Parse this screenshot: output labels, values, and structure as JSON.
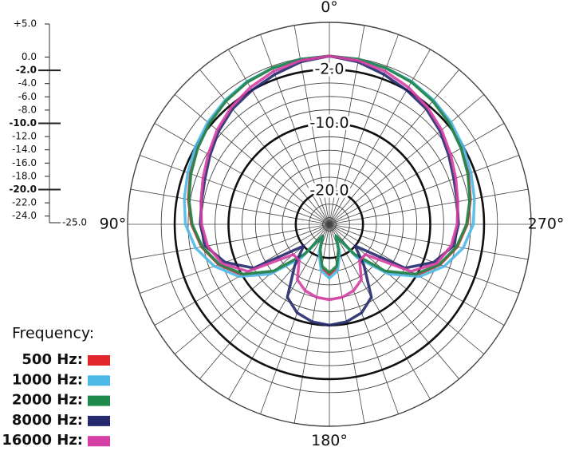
{
  "chart_data": {
    "type": "polar",
    "theta": [
      0,
      10,
      20,
      30,
      40,
      50,
      60,
      70,
      80,
      90,
      100,
      110,
      120,
      130,
      140,
      150,
      160,
      170,
      180,
      190,
      200,
      210,
      220,
      230,
      240,
      250,
      260,
      270,
      280,
      290,
      300,
      310,
      320,
      330,
      340,
      350
    ],
    "rlim": [
      -25,
      5
    ],
    "rticks": [
      {
        "value": 5,
        "label": "+5.0"
      },
      {
        "value": 0,
        "label": "0.0"
      },
      {
        "value": -2,
        "label": "-2.0",
        "major": true
      },
      {
        "value": -4,
        "label": "-4.0"
      },
      {
        "value": -6,
        "label": "-6.0"
      },
      {
        "value": -8,
        "label": "-8.0"
      },
      {
        "value": -10,
        "label": "-10.0",
        "major": true
      },
      {
        "value": -12,
        "label": "-12.0"
      },
      {
        "value": -14,
        "label": "-14.0"
      },
      {
        "value": -16,
        "label": "-16.0"
      },
      {
        "value": -18,
        "label": "-18.0"
      },
      {
        "value": -20,
        "label": "-20.0",
        "major": true
      },
      {
        "value": -22,
        "label": "-22.0"
      },
      {
        "value": -24,
        "label": "-24.0"
      },
      {
        "value": -25,
        "label": "-25.0"
      }
    ],
    "angle_labels": [
      {
        "value": 0,
        "label": "0°"
      },
      {
        "value": 90,
        "label": "90°"
      },
      {
        "value": 180,
        "label": "180°"
      },
      {
        "value": 270,
        "label": "270°"
      }
    ],
    "legend_title": "Frequency:",
    "series": [
      {
        "name": "500 Hz:",
        "color": "#e0262b",
        "values": [
          0,
          -0.1,
          -0.3,
          -0.6,
          -1.0,
          -1.6,
          -2.3,
          -3.0,
          -3.7,
          -4.5,
          -5.7,
          -7.5,
          -10,
          -14,
          -19,
          -23,
          -21,
          -18.5,
          -17.5,
          -18.5,
          -21,
          -23,
          -19,
          -14,
          -10,
          -7.5,
          -5.7,
          -4.5,
          -3.7,
          -3.0,
          -2.3,
          -1.6,
          -1.0,
          -0.6,
          -0.3,
          -0.1
        ]
      },
      {
        "name": "1000 Hz:",
        "color": "#4cb8e6",
        "values": [
          0,
          -0.1,
          -0.3,
          -0.5,
          -0.9,
          -1.4,
          -2.0,
          -2.6,
          -3.1,
          -3.6,
          -4.8,
          -6.8,
          -9.5,
          -13.5,
          -18.5,
          -23,
          -20.5,
          -18,
          -17,
          -18,
          -20.5,
          -23,
          -18.5,
          -13.5,
          -9.5,
          -6.8,
          -4.8,
          -3.6,
          -3.1,
          -2.6,
          -2.0,
          -1.4,
          -0.9,
          -0.5,
          -0.3,
          -0.1
        ]
      },
      {
        "name": "2000 Hz:",
        "color": "#1e8a4c",
        "values": [
          0,
          -0.1,
          -0.3,
          -0.6,
          -1.1,
          -1.7,
          -2.4,
          -3.1,
          -3.8,
          -4.6,
          -5.8,
          -7.6,
          -10.2,
          -14.2,
          -19.2,
          -23,
          -21,
          -18.7,
          -17.8,
          -18.7,
          -21,
          -23,
          -19.2,
          -14.2,
          -10.2,
          -7.6,
          -5.8,
          -4.6,
          -3.8,
          -3.1,
          -2.4,
          -1.7,
          -1.1,
          -0.6,
          -0.3,
          -0.1
        ]
      },
      {
        "name": "8000 Hz:",
        "color": "#252a6e",
        "values": [
          0,
          -0.5,
          -1.3,
          -2.0,
          -2.6,
          -3.5,
          -4.5,
          -5.3,
          -5.7,
          -5.8,
          -6.3,
          -8.5,
          -12,
          -20,
          -17,
          -12.5,
          -11,
          -10.3,
          -10,
          -10.3,
          -11,
          -12.5,
          -17,
          -20,
          -12,
          -8.5,
          -6.3,
          -5.8,
          -5.7,
          -5.3,
          -4.5,
          -3.5,
          -2.6,
          -2.0,
          -1.3,
          -0.5
        ]
      },
      {
        "name": "16000 Hz:",
        "color": "#d63fa3",
        "values": [
          0,
          -0.3,
          -0.8,
          -1.5,
          -2.3,
          -3.2,
          -4.2,
          -5.0,
          -5.6,
          -6.0,
          -6.6,
          -8.0,
          -11,
          -18,
          -18,
          -15.5,
          -14.5,
          -14,
          -13.8,
          -14,
          -14.5,
          -15.5,
          -18,
          -18,
          -11,
          -8.0,
          -6.6,
          -6.0,
          -5.6,
          -5.0,
          -4.2,
          -3.2,
          -2.3,
          -1.5,
          -0.8,
          -0.3
        ]
      }
    ]
  }
}
